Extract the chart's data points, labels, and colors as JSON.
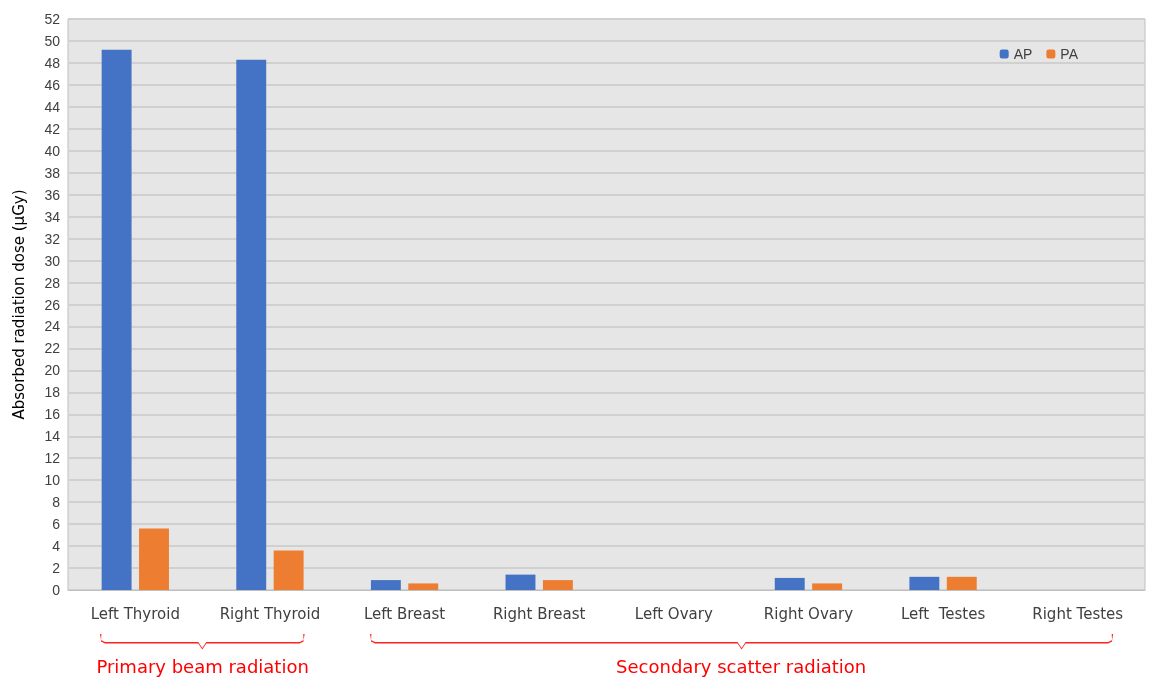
{
  "chart_data": {
    "type": "bar",
    "ylabel": "Absorbed radiation dose (µGy)",
    "categories": [
      "Left Thyroid",
      "Right Thyroid",
      "Left Breast",
      "Right Breast",
      "Left Ovary",
      "Right Ovary",
      "Left  Testes",
      "Right Testes"
    ],
    "series": [
      {
        "name": "AP",
        "color": "#4472c4",
        "values": [
          49.2,
          48.3,
          0.9,
          1.4,
          0,
          1.1,
          1.2,
          0
        ]
      },
      {
        "name": "PA",
        "color": "#ed7d31",
        "values": [
          5.6,
          3.6,
          0.6,
          0.9,
          0,
          0.6,
          1.2,
          0
        ]
      }
    ],
    "ylim": [
      0,
      52
    ],
    "yticks": [
      0,
      2,
      4,
      6,
      8,
      10,
      12,
      14,
      16,
      18,
      20,
      22,
      24,
      26,
      28,
      30,
      32,
      34,
      36,
      38,
      40,
      42,
      44,
      46,
      48,
      50,
      52
    ],
    "grid": "y",
    "legend": "top right",
    "annotations": [
      "Primary beam radiation",
      "Secondary scatter radiation"
    ]
  }
}
